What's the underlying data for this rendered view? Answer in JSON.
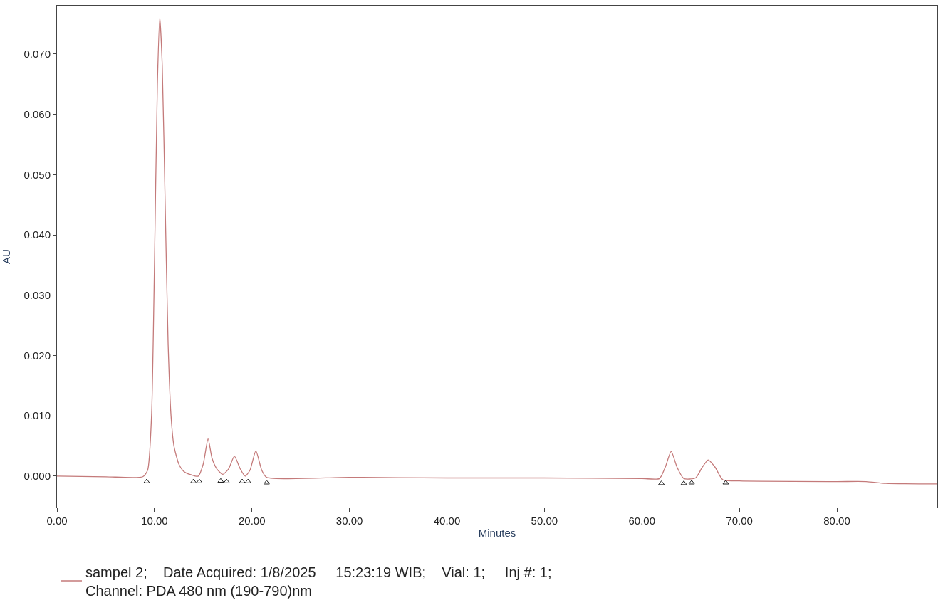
{
  "chart_data": {
    "type": "line",
    "xlabel": "Minutes",
    "ylabel": "AU",
    "xlim": [
      0,
      90.3
    ],
    "ylim": [
      -0.0052,
      0.078
    ],
    "xticks": [
      {
        "value": 0,
        "label": "0.00"
      },
      {
        "value": 10,
        "label": "10.00"
      },
      {
        "value": 20,
        "label": "20.00"
      },
      {
        "value": 30,
        "label": "30.00"
      },
      {
        "value": 40,
        "label": "40.00"
      },
      {
        "value": 50,
        "label": "50.00"
      },
      {
        "value": 60,
        "label": "60.00"
      },
      {
        "value": 70,
        "label": "70.00"
      },
      {
        "value": 80,
        "label": "80.00"
      }
    ],
    "yticks": [
      {
        "value": 0,
        "label": "0.000"
      },
      {
        "value": 0.01,
        "label": "0.010"
      },
      {
        "value": 0.02,
        "label": "0.020"
      },
      {
        "value": 0.03,
        "label": "0.030"
      },
      {
        "value": 0.04,
        "label": "0.040"
      },
      {
        "value": 0.05,
        "label": "0.050"
      },
      {
        "value": 0.06,
        "label": "0.060"
      },
      {
        "value": 0.07,
        "label": "0.070"
      }
    ],
    "legend": "bottom",
    "line_style": "solid",
    "series": [
      {
        "name": "sampel 2;    Date Acquired: 1/8/2025     15:23:19 WIB;    Vial: 1;     Inj #: 1;\nChannel: PDA 480 nm (190-790)nm",
        "color": "#c47a7a",
        "marker": "none",
        "x": [
          0,
          5,
          8.8,
          9.3,
          9.7,
          10.0,
          10.3,
          10.55,
          10.8,
          11.1,
          11.4,
          11.7,
          12.0,
          12.5,
          13.0,
          13.8,
          14.5,
          15.0,
          15.5,
          15.9,
          16.4,
          17.0,
          17.6,
          18.2,
          18.8,
          19.3,
          19.8,
          20.4,
          21.0,
          21.5,
          30,
          40,
          50,
          60,
          61.8,
          62.4,
          63.0,
          63.6,
          64.3,
          65.5,
          66.2,
          66.8,
          67.5,
          68.3,
          70,
          80,
          83,
          85,
          90.3
        ],
        "values": [
          0,
          -0.0001,
          -0.0001,
          0.001,
          0.01,
          0.035,
          0.065,
          0.076,
          0.068,
          0.045,
          0.022,
          0.01,
          0.005,
          0.002,
          0.0008,
          0.0002,
          0.0,
          0.002,
          0.0062,
          0.003,
          0.0012,
          0.0003,
          0.0012,
          0.0033,
          0.0012,
          0.0,
          0.001,
          0.0042,
          0.001,
          -0.0002,
          -0.0002,
          -0.0003,
          -0.0003,
          -0.0004,
          -0.0004,
          0.0015,
          0.0041,
          0.0015,
          -0.0004,
          -0.0003,
          0.0015,
          0.0027,
          0.0015,
          -0.0006,
          -0.0008,
          -0.0009,
          -0.0009,
          -0.0012,
          -0.0013
        ]
      },
      {
        "type": "scatter",
        "color": "#222222",
        "marker": "triangle",
        "x": [
          9.2,
          14.0,
          14.6,
          16.8,
          17.4,
          19.0,
          19.6,
          21.5,
          62.0,
          64.3,
          65.1,
          68.6
        ],
        "values": [
          -0.0009,
          -0.0009,
          -0.0009,
          -0.0008,
          -0.0009,
          -0.0009,
          -0.0009,
          -0.0011,
          -0.0012,
          -0.0012,
          -0.0011,
          -0.0011
        ]
      }
    ]
  }
}
